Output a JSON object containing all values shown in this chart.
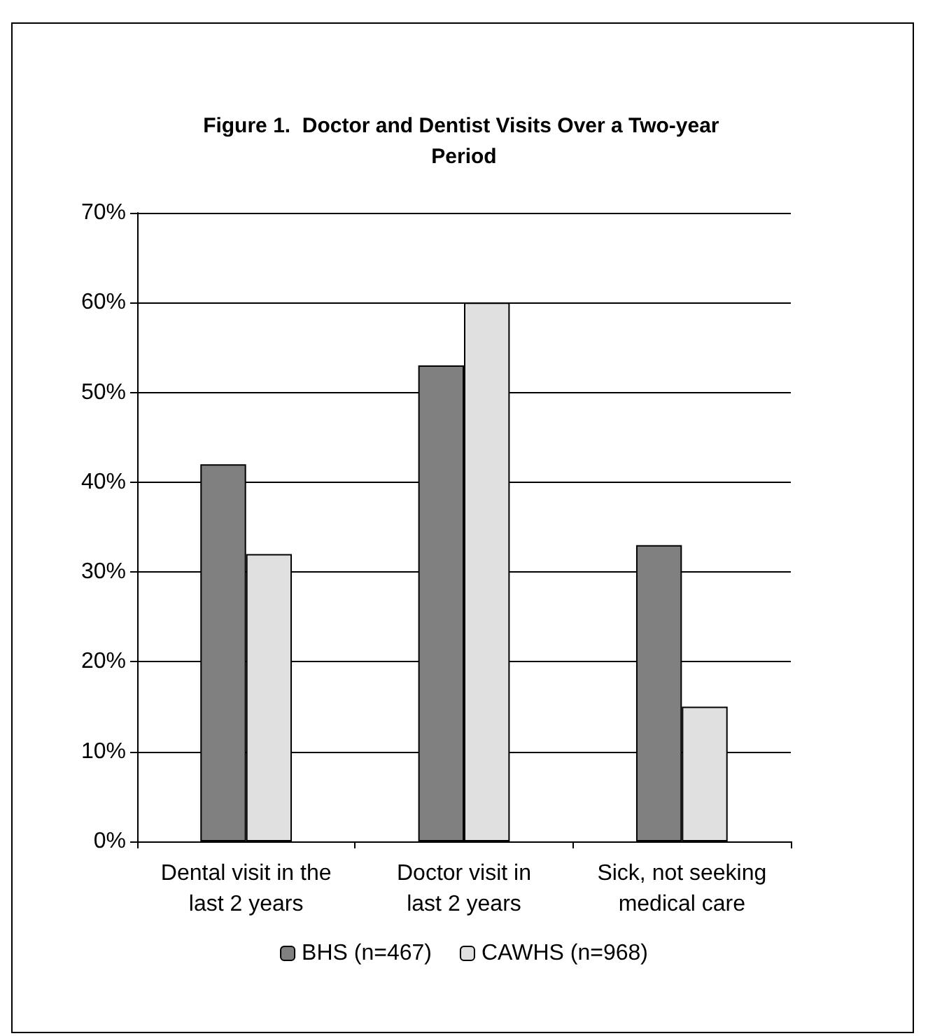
{
  "chart_data": {
    "type": "bar",
    "title": "Figure 1.  Doctor and Dentist Visits Over a Two-year Period",
    "categories": [
      "Dental visit in the\nlast 2 years",
      "Doctor visit in\nlast 2 years",
      "Sick, not seeking\nmedical care"
    ],
    "series": [
      {
        "name": "BHS (n=467)",
        "color": "#808080",
        "values": [
          42,
          53,
          33
        ]
      },
      {
        "name": "CAWHS (n=968)",
        "color": "#e0e0e0",
        "values": [
          32,
          60,
          15
        ]
      }
    ],
    "ylim": [
      0,
      70
    ],
    "yticks": [
      {
        "value": 0,
        "label": "0%"
      },
      {
        "value": 10,
        "label": "10%"
      },
      {
        "value": 20,
        "label": "20%"
      },
      {
        "value": 30,
        "label": "30%"
      },
      {
        "value": 40,
        "label": "40%"
      },
      {
        "value": 50,
        "label": "50%"
      },
      {
        "value": 60,
        "label": "60%"
      },
      {
        "value": 70,
        "label": "70%"
      }
    ],
    "grid": "y",
    "legend": "bottom"
  }
}
